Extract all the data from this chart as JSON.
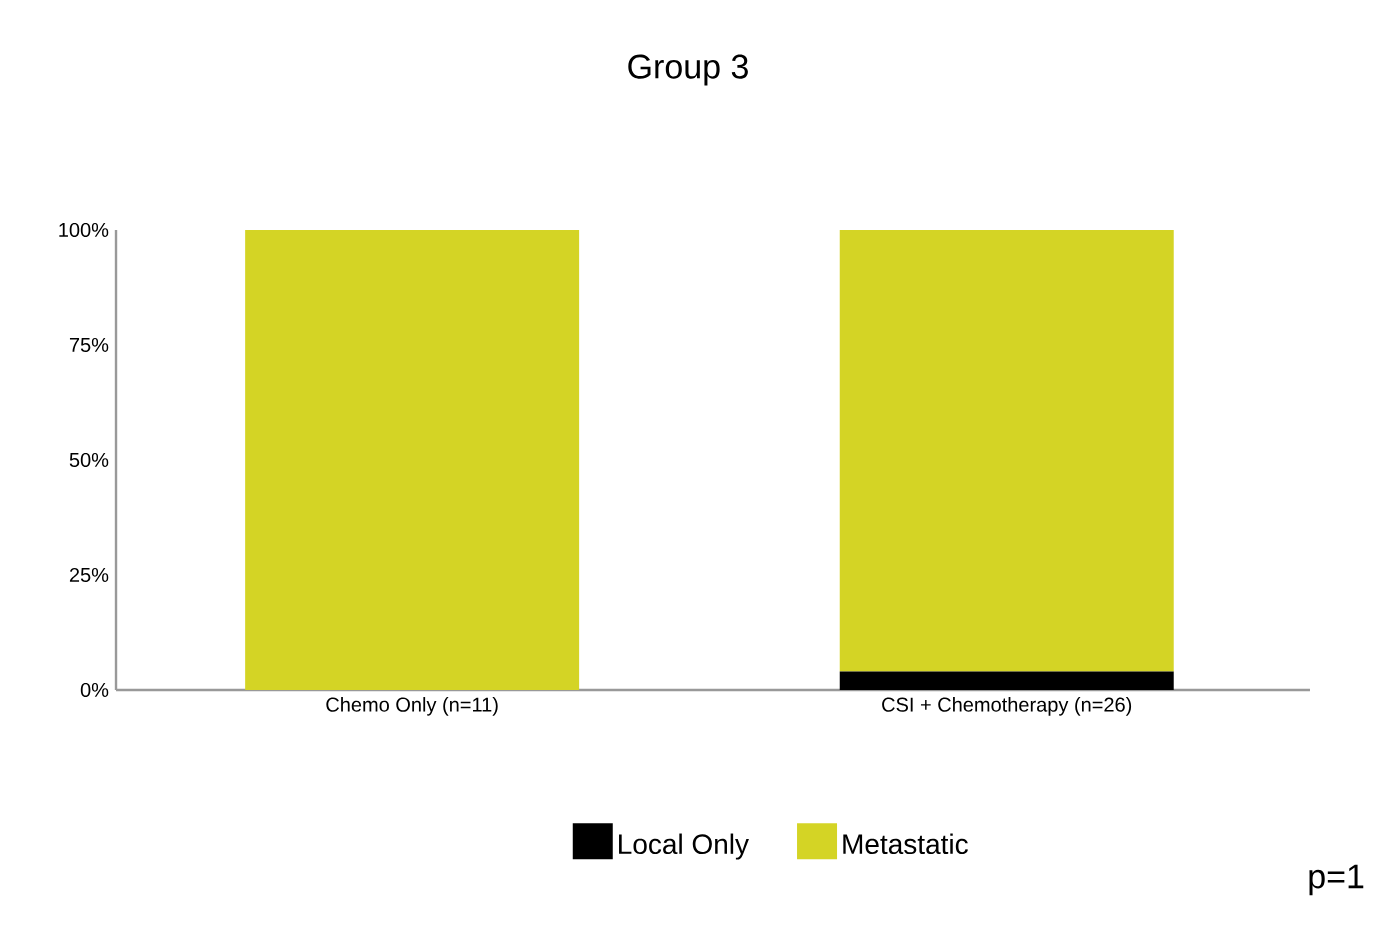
{
  "chart_data": {
    "type": "bar",
    "title": "Group 3",
    "categories": [
      "Chemo Only (n=11)",
      "CSI + Chemotherapy (n=26)"
    ],
    "stacked": true,
    "series": [
      {
        "name": "Local Only",
        "color": "#000000",
        "values": [
          0,
          4
        ]
      },
      {
        "name": "Metastatic",
        "color": "#d4d425",
        "values": [
          100,
          96
        ]
      }
    ],
    "ylim": [
      0,
      100
    ],
    "yticks": [
      {
        "value": 0,
        "label": "0%"
      },
      {
        "value": 25,
        "label": "25%"
      },
      {
        "value": 50,
        "label": "50%"
      },
      {
        "value": 75,
        "label": "75%"
      },
      {
        "value": 100,
        "label": "100%"
      }
    ],
    "legend": "bottom",
    "annotations": [
      "p=1"
    ]
  }
}
